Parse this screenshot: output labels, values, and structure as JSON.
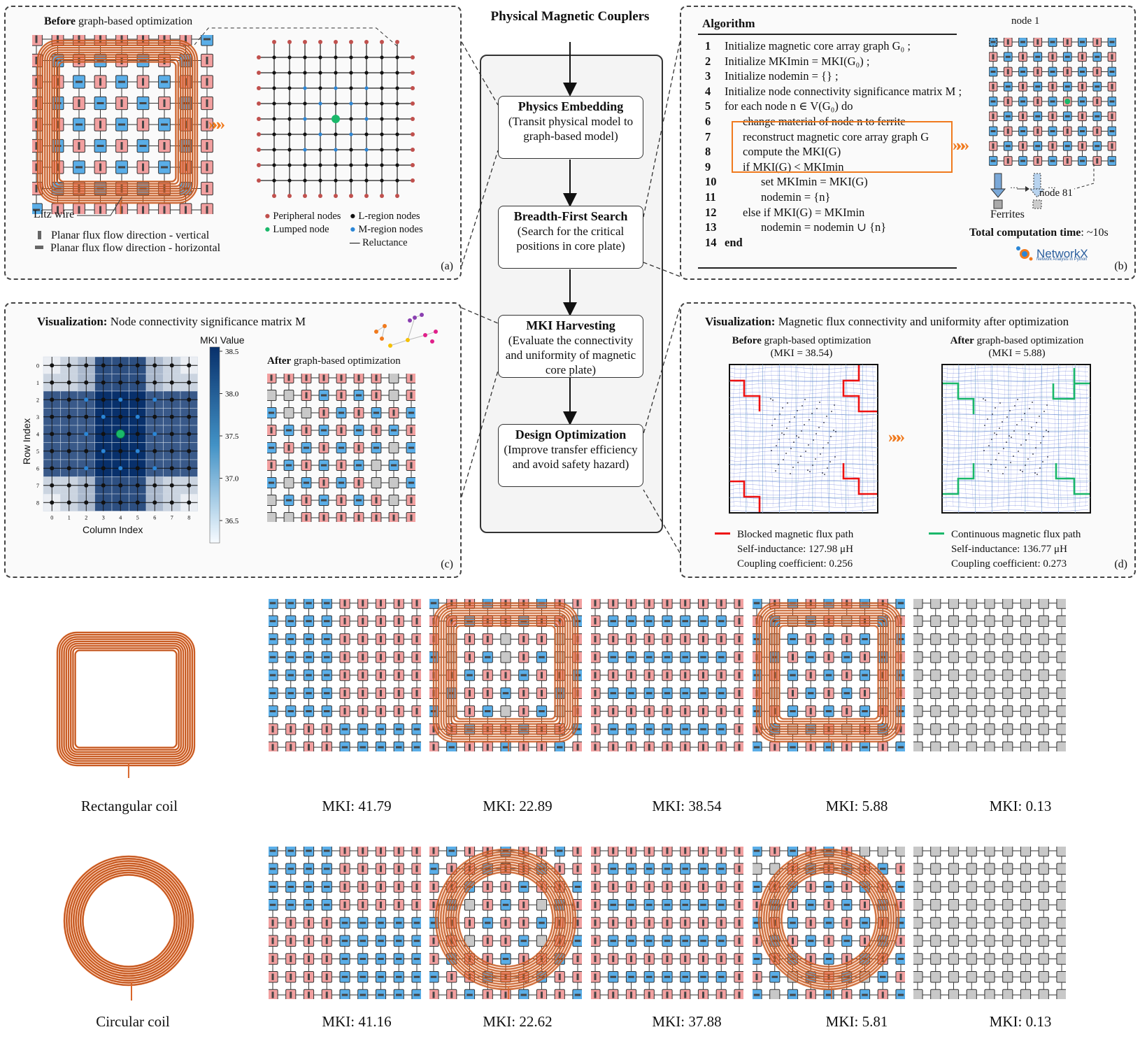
{
  "center": {
    "top_title": "Physical Magnetic Couplers",
    "steps": [
      {
        "title": "Physics Embedding",
        "desc": "(Transit physical model to graph-based model)"
      },
      {
        "title": "Breadth-First Search",
        "desc": "(Search for the critical positions in core plate)"
      },
      {
        "title": "MKI Harvesting",
        "desc": "(Evaluate the connectivity and uniformity of magnetic core plate)"
      },
      {
        "title": "Design Optimization",
        "desc": "(Improve transfer efficiency and avoid safety hazard)"
      }
    ]
  },
  "panel_a": {
    "title_bold": "Before",
    "title_rest": " graph-based optimization",
    "litz": "Litz wire",
    "vertical": "Planar flux flow direction - vertical",
    "horizontal": "Planar flux flow direction - horizontal",
    "legend": [
      "Peripheral nodes",
      "Lumped node",
      "L-region nodes",
      "M-region nodes",
      "Reluctance"
    ],
    "label": "(a)"
  },
  "panel_b": {
    "algo_title": "Algorithm",
    "lines": [
      "Initialize magnetic core array graph G₀ ;",
      "Initialize MKImin = MKI(G₀) ;",
      "Initialize nodemin = {} ;",
      "Initialize node connectivity significance matrix M ;",
      "for each node n ∈ V(G₀) do",
      "change material of node n to ferrite",
      "reconstruct magnetic core array graph G",
      "compute the MKI(G)",
      "if MKI(G) < MKImin",
      "set MKImin = MKI(G)",
      "nodemin = {n}",
      "else if MKI(G) = MKImin",
      "nodemin = nodemin ∪ {n}",
      "end"
    ],
    "node1": "node 1",
    "node81": "node 81",
    "ferrites": "Ferrites",
    "time_bold": "Total computation time",
    "time_rest": ": ~10s",
    "networkx": "NetworkX",
    "networkx_sub": "Network Analysis in Python",
    "label": "(b)"
  },
  "panel_c": {
    "title_bold": "Visualization:",
    "title_rest": " Node connectivity significance matrix M",
    "cbar_title": "MKI Value",
    "cbar_ticks": [
      "38.5",
      "38.0",
      "37.5",
      "37.0",
      "36.5"
    ],
    "ylabel": "Row Index",
    "xlabel": "Column Index",
    "axis_ticks": [
      "0",
      "1",
      "2",
      "3",
      "4",
      "5",
      "6",
      "7",
      "8"
    ],
    "after_bold": "After",
    "after_rest": " graph-based optimization",
    "label": "(c)"
  },
  "panel_d": {
    "title_bold": "Visualization:",
    "title_rest": " Magnetic flux connectivity and uniformity after optimization",
    "before_bold": "Before",
    "before_rest": " graph-based optimization",
    "before_mki": "(MKI = 38.54)",
    "after_bold": "After",
    "after_rest": " graph-based optimization",
    "after_mki": "(MKI = 5.88)",
    "blocked": "Blocked magnetic flux path",
    "self_ind_before": "Self-inductance: 127.98 μH",
    "coupling_before": "Coupling coefficient: 0.256",
    "continuous": "Continuous magnetic flux path",
    "self_ind_after": "Self-inductance: 136.77 μH",
    "coupling_after": "Coupling coefficient: 0.273",
    "label": "(d)"
  },
  "bottom": {
    "rect_caption": "Rectangular coil",
    "circ_caption": "Circular coil",
    "rect_mki": [
      "MKI: 41.79",
      "MKI: 22.89",
      "MKI: 38.54",
      "MKI: 5.88",
      "MKI: 0.13"
    ],
    "circ_mki": [
      "MKI: 41.16",
      "MKI: 22.62",
      "MKI: 37.88",
      "MKI: 5.81",
      "MKI: 0.13"
    ]
  },
  "colors": {
    "pink": "#f2a0a0",
    "blue": "#5aaee8",
    "gray": "#c8c8c8",
    "coil": "#d9662a",
    "orange": "#f07a1e",
    "heat_dark": "#0b3a7e",
    "red_path": "#e11",
    "green_path": "#1ab86a"
  }
}
